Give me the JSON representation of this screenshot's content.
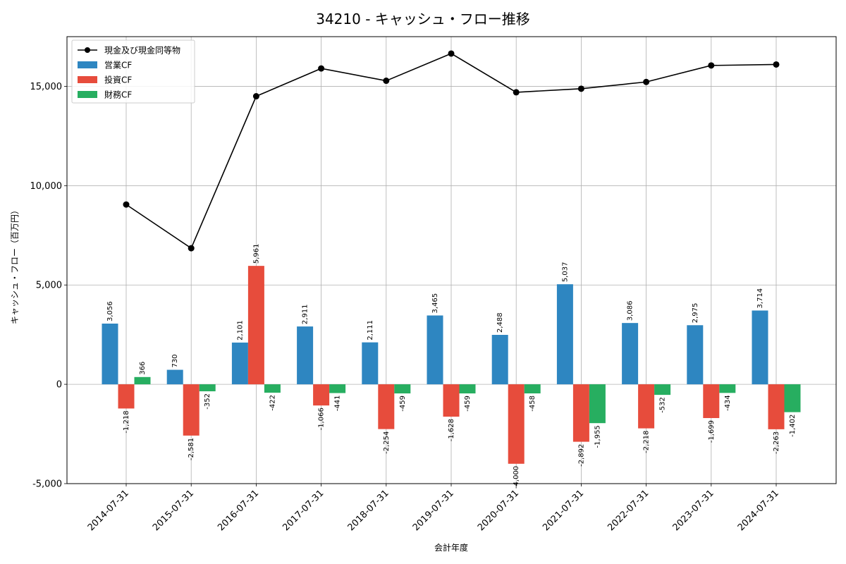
{
  "chart_data": {
    "type": "bar",
    "title": "34210 - キャッシュ・フロー推移",
    "xlabel": "会計年度",
    "ylabel": "キャッシュ・フロー（百万円）",
    "ylim": [
      -5000,
      17500
    ],
    "yticks": [
      -5000,
      0,
      5000,
      10000,
      15000
    ],
    "ytick_labels": [
      "-5,000",
      "0",
      "5,000",
      "10,000",
      "15,000"
    ],
    "grid": true,
    "legend_position": "top-left",
    "categories": [
      "2014-07-31",
      "2015-07-31",
      "2016-07-31",
      "2017-07-31",
      "2018-07-31",
      "2019-07-31",
      "2020-07-31",
      "2021-07-31",
      "2022-07-31",
      "2023-07-31",
      "2024-07-31"
    ],
    "series": [
      {
        "name": "営業CF",
        "kind": "bar",
        "color": "#2e86c1",
        "values": [
          3056,
          730,
          2101,
          2911,
          2111,
          3465,
          2488,
          5037,
          3086,
          2975,
          3714
        ],
        "labels": [
          "3,056",
          "730",
          "2,101",
          "2,911",
          "2,111",
          "3,465",
          "2,488",
          "5,037",
          "3,086",
          "2,975",
          "3,714"
        ]
      },
      {
        "name": "投資CF",
        "kind": "bar",
        "color": "#e74c3c",
        "values": [
          -1218,
          -2581,
          5961,
          -1066,
          -2254,
          -1628,
          -4000,
          -2892,
          -2218,
          -1699,
          -2263
        ],
        "labels": [
          "-1,218",
          "-2,581",
          "5,961",
          "-1,066",
          "-2,254",
          "-1,628",
          "-4,000",
          "-2,892",
          "-2,218",
          "-1,699",
          "-2,263"
        ]
      },
      {
        "name": "財務CF",
        "kind": "bar",
        "color": "#27ae60",
        "values": [
          366,
          -352,
          -422,
          -441,
          -459,
          -459,
          -458,
          -1955,
          -532,
          -434,
          -1402
        ],
        "labels": [
          "366",
          "-352",
          "-422",
          "-441",
          "-459",
          "-459",
          "-458",
          "-1,955",
          "-532",
          "-434",
          "-1,402"
        ]
      },
      {
        "name": "現金及び現金同等物",
        "kind": "line",
        "color": "#000000",
        "values": [
          9050,
          6850,
          14500,
          15900,
          15280,
          16650,
          14700,
          14880,
          15220,
          16050,
          16100
        ]
      }
    ]
  }
}
